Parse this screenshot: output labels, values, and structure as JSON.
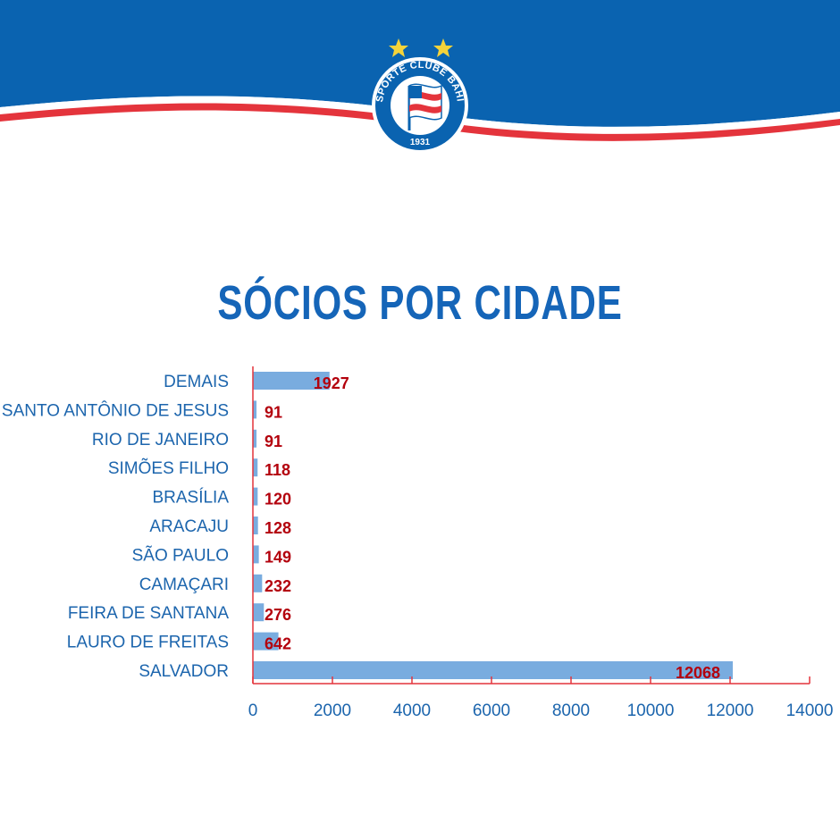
{
  "header": {
    "crest_text": "ESPORTE CLUBE BAHIA",
    "crest_year": "1931",
    "colors": {
      "blue": "#0a63b0",
      "red": "#e4343c",
      "star": "#f5d33a"
    }
  },
  "chart_data": {
    "type": "bar",
    "orientation": "horizontal",
    "title": "SÓCIOS POR CIDADE",
    "categories": [
      "DEMAIS",
      "SANTO ANTÔNIO DE JESUS",
      "RIO DE JANEIRO",
      "SIMÕES FILHO",
      "BRASÍLIA",
      "ARACAJU",
      "SÃO PAULO",
      "CAMAÇARI",
      "FEIRA DE SANTANA",
      "LAURO DE FREITAS",
      "SALVADOR"
    ],
    "values": [
      1927,
      91,
      91,
      118,
      120,
      128,
      149,
      232,
      276,
      642,
      12068
    ],
    "xlim": [
      0,
      14000
    ],
    "xticks": [
      0,
      2000,
      4000,
      6000,
      8000,
      10000,
      12000,
      14000
    ],
    "grid": false,
    "legend": "none",
    "colors": {
      "bar": "#79acdf",
      "axis": "#e4343c",
      "value_label": "#b3000c",
      "text": "#1c65ad"
    }
  }
}
